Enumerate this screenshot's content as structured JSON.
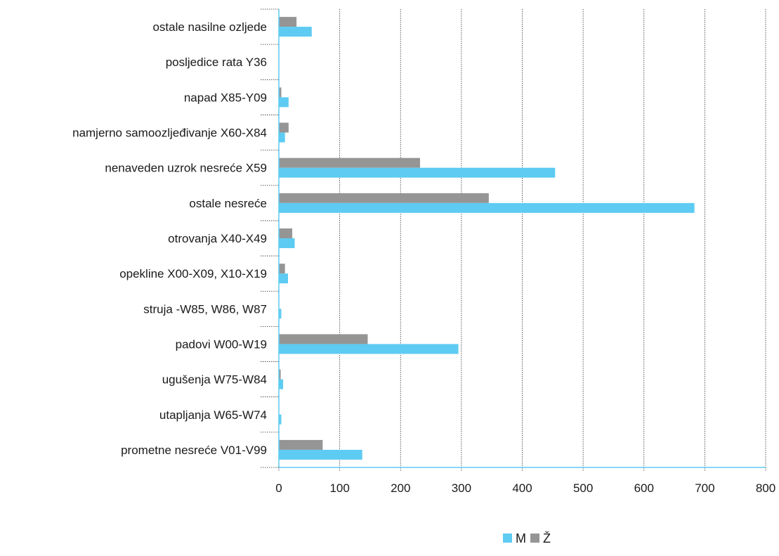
{
  "chart_data": {
    "type": "bar",
    "orientation": "horizontal",
    "categories": [
      "ostale nasilne ozljede",
      "posljedice rata Y36",
      "napad X85-Y09",
      "namjerno samoozljeđivanje X60-X84",
      "nenaveden uzrok nesreće X59",
      "ostale nesreće",
      "otrovanja X40-X49",
      "opekline X00-X09, X10-X19",
      "struja -W85, W86, W87",
      "padovi W00-W19",
      "ugušenja W75-W84",
      "utapljanja W65-W74",
      "prometne nesreće V01-V99"
    ],
    "series": [
      {
        "name": "Ž",
        "color": "#959595",
        "values": [
          29,
          0,
          4,
          16,
          232,
          345,
          22,
          10,
          0,
          146,
          3,
          0,
          72
        ]
      },
      {
        "name": "M",
        "color": "#5ecbf2",
        "values": [
          54,
          0,
          16,
          10,
          454,
          683,
          26,
          15,
          4,
          295,
          7,
          4,
          137
        ]
      }
    ],
    "xlim": [
      0,
      800
    ],
    "x_ticks": [
      "0",
      "100",
      "200",
      "300",
      "400",
      "500",
      "600",
      "700",
      "800"
    ],
    "grid": "vertical dashed",
    "legend": {
      "position": "bottom",
      "entries": [
        {
          "label": "M",
          "color": "#5ecbf2"
        },
        {
          "label": "Ž",
          "color": "#959595"
        }
      ]
    }
  }
}
